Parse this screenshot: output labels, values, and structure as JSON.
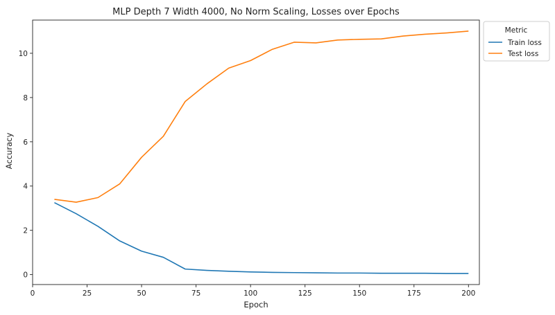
{
  "chart_data": {
    "type": "line",
    "title": "MLP Depth 7 Width 4000, No Norm Scaling, Losses over Epochs",
    "xlabel": "Epoch",
    "ylabel": "Accuracy",
    "xlim": [
      0,
      205
    ],
    "ylim": [
      -0.45,
      11.5
    ],
    "xticks": [
      0,
      25,
      50,
      75,
      100,
      125,
      150,
      175,
      200
    ],
    "yticks": [
      0,
      2,
      4,
      6,
      8,
      10
    ],
    "grid": false,
    "legend": {
      "title": "Metric",
      "placement": "outside-top-right"
    },
    "x": [
      10,
      20,
      30,
      40,
      50,
      60,
      70,
      80,
      90,
      100,
      110,
      120,
      130,
      140,
      150,
      160,
      170,
      180,
      190,
      200
    ],
    "series": [
      {
        "name": "Train loss",
        "color": "#1f77b4",
        "values": [
          3.25,
          2.75,
          2.18,
          1.52,
          1.06,
          0.78,
          0.25,
          0.19,
          0.15,
          0.12,
          0.1,
          0.09,
          0.08,
          0.07,
          0.07,
          0.06,
          0.06,
          0.06,
          0.05,
          0.05
        ]
      },
      {
        "name": "Test loss",
        "color": "#ff7f0e",
        "values": [
          3.4,
          3.27,
          3.48,
          4.1,
          5.3,
          6.25,
          7.82,
          8.62,
          9.33,
          9.67,
          10.18,
          10.5,
          10.47,
          10.6,
          10.63,
          10.65,
          10.78,
          10.86,
          10.92,
          11.0
        ]
      }
    ]
  }
}
